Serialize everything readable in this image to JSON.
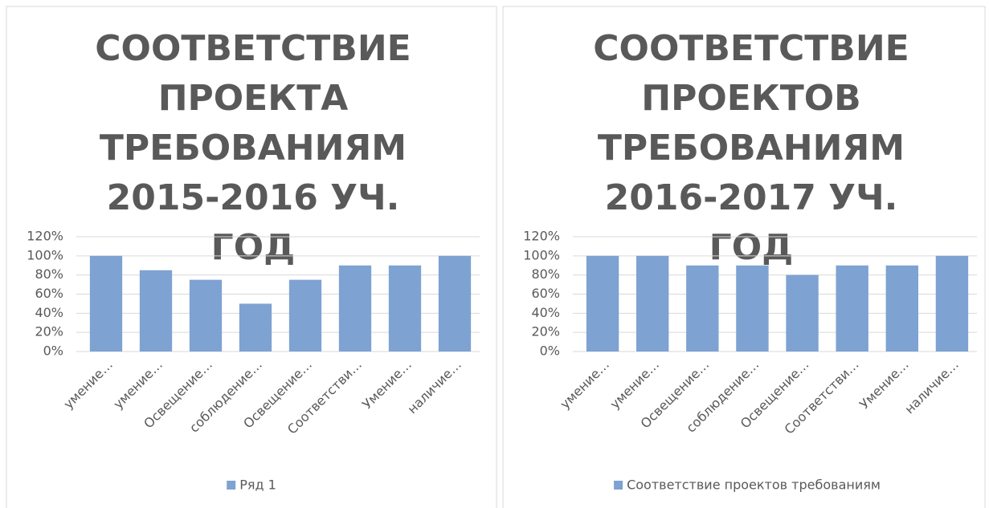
{
  "chart_data": [
    {
      "type": "bar",
      "title": "СООТВЕТСТВИЕ ПРОЕКТА ТРЕБОВАНИЯМ 2015-2016 УЧ. ГОД",
      "categories": [
        "умение…",
        "умение…",
        "Освещение…",
        "соблюдение…",
        "Освещение…",
        "Соответстви…",
        "Умение…",
        "наличие…"
      ],
      "series": [
        {
          "name": "Ряд 1",
          "color": "#7ea2d2",
          "values": [
            100,
            85,
            75,
            50,
            75,
            90,
            90,
            100
          ]
        }
      ],
      "ylim": [
        0,
        120
      ],
      "yticks": [
        {
          "value": 0,
          "label": "0%"
        },
        {
          "value": 20,
          "label": "20%"
        },
        {
          "value": 40,
          "label": "40%"
        },
        {
          "value": 60,
          "label": "60%"
        },
        {
          "value": 80,
          "label": "80%"
        },
        {
          "value": 100,
          "label": "100%"
        },
        {
          "value": 120,
          "label": "120%"
        }
      ],
      "grid": true,
      "legend": "bottom"
    },
    {
      "type": "bar",
      "title": "СООТВЕТСТВИЕ ПРОЕКТОВ ТРЕБОВАНИЯМ 2016-2017 УЧ. ГОД",
      "categories": [
        "умение…",
        "умение…",
        "Освещение…",
        "соблюдение…",
        "Освещение…",
        "Соответстви…",
        "Умение…",
        "наличие…"
      ],
      "series": [
        {
          "name": "Соответствие проектов требованиям",
          "color": "#7ea2d2",
          "values": [
            100,
            100,
            90,
            90,
            80,
            90,
            90,
            100
          ]
        }
      ],
      "ylim": [
        0,
        120
      ],
      "yticks": [
        {
          "value": 0,
          "label": "0%"
        },
        {
          "value": 20,
          "label": "20%"
        },
        {
          "value": 40,
          "label": "40%"
        },
        {
          "value": 60,
          "label": "60%"
        },
        {
          "value": 80,
          "label": "80%"
        },
        {
          "value": 100,
          "label": "100%"
        },
        {
          "value": 120,
          "label": "120%"
        }
      ],
      "grid": true,
      "legend": "bottom"
    }
  ]
}
